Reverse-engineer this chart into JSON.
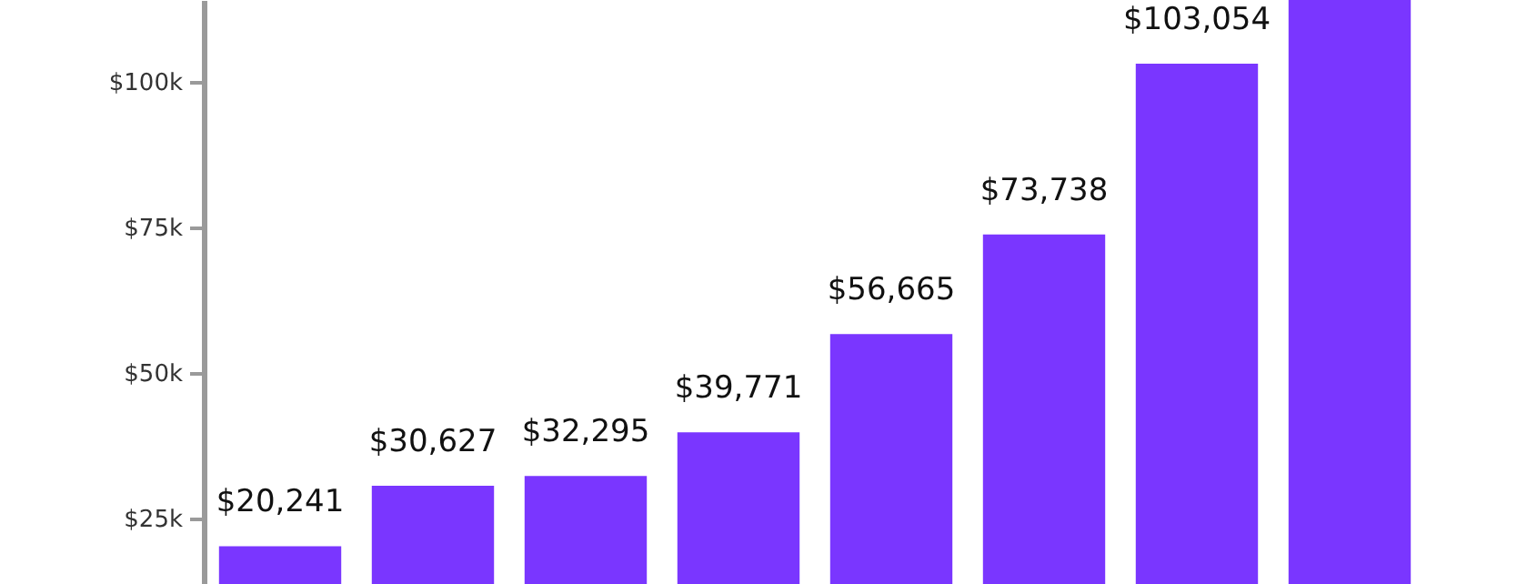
{
  "chart_data": {
    "type": "bar",
    "categories": [
      null,
      null,
      null,
      null,
      null,
      null,
      null,
      null
    ],
    "values": [
      20241,
      30627,
      32295,
      39771,
      56665,
      73738,
      103054,
      114000
    ],
    "value_labels": [
      "$20,241",
      "$30,627",
      "$32,295",
      "$39,771",
      "$56,665",
      "$73,738",
      "$103,054",
      null
    ],
    "color": "#7a36ff",
    "ylim": [
      13750,
      114000
    ],
    "yticks": [
      {
        "value": 25000,
        "label": "$25k"
      },
      {
        "value": 50000,
        "label": "$50k"
      },
      {
        "value": 75000,
        "label": "$75k"
      },
      {
        "value": 100000,
        "label": "$100k"
      }
    ],
    "grid": false
  }
}
